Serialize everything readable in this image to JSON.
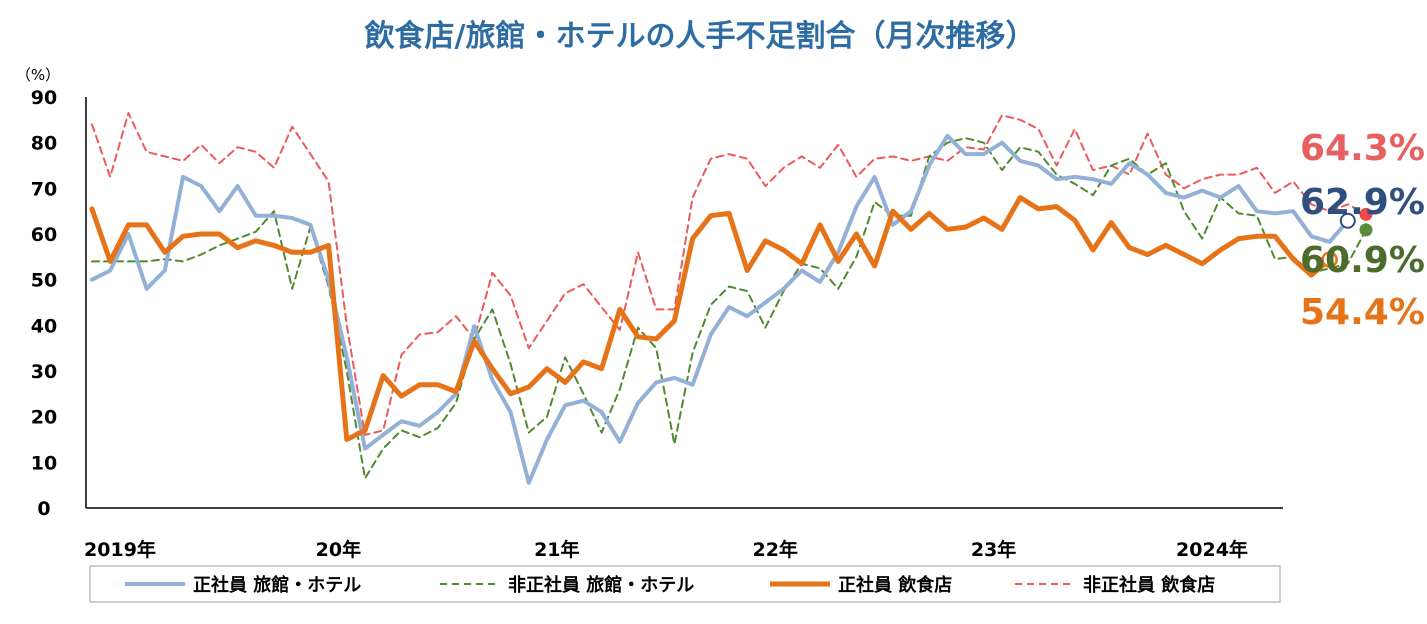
{
  "chart_data": {
    "type": "line",
    "title": "飲食店/旅館・ホテルの人手不足割合（月次推移）",
    "ylabel_unit": "（%）",
    "ylim": [
      0,
      90
    ],
    "yticks": [
      "0",
      "10",
      "20",
      "30",
      "40",
      "50",
      "60",
      "70",
      "80",
      "90"
    ],
    "xlim": [
      0,
      66
    ],
    "xticks": [
      {
        "label": "2019年",
        "month": 0
      },
      {
        "label": "20年",
        "month": 12
      },
      {
        "label": "21年",
        "month": 24
      },
      {
        "label": "22年",
        "month": 36
      },
      {
        "label": "23年",
        "month": 48
      },
      {
        "label": "2024年",
        "month": 60
      }
    ],
    "series": [
      {
        "name": "正社員 旅館・ホテル",
        "color": "#93b0d6",
        "style": "solid",
        "values": [
          50,
          52,
          60,
          48,
          52,
          72.5,
          70.5,
          65,
          70.5,
          64,
          64,
          63.5,
          62,
          50,
          33,
          13,
          16,
          19,
          18,
          21,
          25,
          39.8,
          28,
          21,
          5.5,
          15,
          22.5,
          23.5,
          21,
          14.5,
          23,
          27.5,
          28.5,
          27,
          38,
          44,
          42,
          45,
          48,
          52,
          49.5,
          56,
          66,
          72.5,
          62,
          65,
          75,
          81.5,
          77.5,
          77.5,
          80,
          76,
          75,
          72,
          72.5,
          72,
          71,
          75.5,
          73,
          69,
          68,
          69.5,
          68,
          70.5,
          65,
          64.5,
          65,
          59.5,
          58.3,
          62.9
        ],
        "end_label": "62.9%",
        "end_label_color": "#2f4f7f"
      },
      {
        "name": "非正社員 旅館・ホテル",
        "color": "#4f8a2e",
        "style": "dashed",
        "values": [
          54,
          54,
          54,
          54,
          54.5,
          54,
          55.5,
          57.5,
          59,
          60.5,
          65,
          48,
          61.5,
          48.5,
          30,
          6.5,
          13,
          17,
          15.5,
          17.5,
          23,
          37,
          43.5,
          31.5,
          16.5,
          20,
          33,
          25,
          16.5,
          26,
          39.5,
          35,
          14,
          34,
          44.5,
          48.5,
          47.5,
          39.5,
          47.5,
          53.5,
          52.5,
          48,
          55,
          67,
          64,
          64,
          77,
          80,
          81,
          80,
          74,
          79,
          78,
          73,
          71,
          68.5,
          75,
          76.5,
          73,
          75.5,
          65,
          59,
          68,
          64.5,
          64,
          54.5,
          55,
          51.5,
          52.5,
          53.5,
          60.9
        ],
        "end_label": "60.9%",
        "end_label_color": "#4d6b2c"
      },
      {
        "name": "正社員 飲食店",
        "color": "#e67317",
        "style": "solid-bold",
        "values": [
          65.5,
          54,
          62,
          62,
          56,
          59.5,
          60,
          60,
          57,
          58.5,
          57.5,
          56,
          56,
          57.5,
          15,
          17,
          29,
          24.5,
          27,
          27,
          25.5,
          36.5,
          30.5,
          25,
          26.5,
          30.5,
          27.5,
          32,
          30.5,
          43.5,
          37.5,
          37,
          41,
          59,
          64,
          64.5,
          52,
          58.5,
          56.5,
          53.5,
          62,
          54,
          60,
          53,
          65,
          61,
          64.5,
          61,
          61.5,
          63.5,
          61,
          68,
          65.5,
          66,
          63,
          56.5,
          62.5,
          57,
          55.5,
          57.5,
          55.5,
          53.5,
          56.5,
          59,
          59.5,
          59.5,
          54.5,
          51,
          54.4
        ],
        "end_label": "54.4%",
        "end_label_color": "#e67317"
      },
      {
        "name": "非正社員 飲食店",
        "color": "#ec5a5a",
        "style": "dashed",
        "values": [
          84,
          72.5,
          86.5,
          78,
          77,
          76,
          79.5,
          75.5,
          79,
          78,
          74.5,
          83.5,
          77.5,
          71.5,
          40,
          16,
          17,
          33.5,
          38,
          38.5,
          42,
          37,
          51.5,
          46.5,
          35,
          41,
          47,
          49,
          44,
          39,
          56,
          43.5,
          43.5,
          68,
          76.5,
          77.5,
          76.5,
          70.5,
          74.5,
          77,
          74.5,
          79.5,
          72.5,
          76.5,
          77,
          76,
          77,
          76,
          79,
          78.5,
          86,
          85,
          83,
          75,
          83,
          74,
          75,
          73,
          82,
          73,
          70,
          72,
          73,
          73,
          74.5,
          69,
          71.5,
          66.5,
          65,
          66.5,
          64.3
        ],
        "end_label": "64.3%",
        "end_label_color": "#e85f5f"
      }
    ],
    "legend": [
      "正社員 旅館・ホテル",
      "非正社員 旅館・ホテル",
      "正社員 飲食店",
      "非正社員 飲食店"
    ]
  }
}
